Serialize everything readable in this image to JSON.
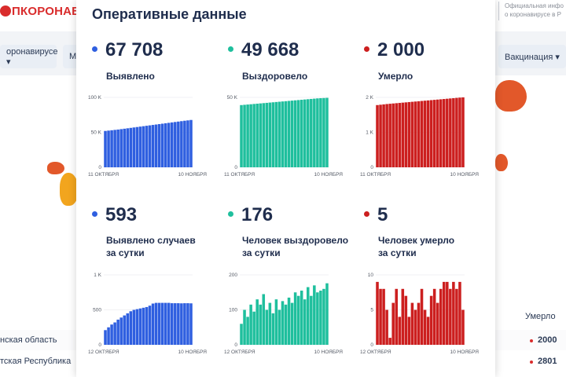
{
  "site": {
    "logo_text": "ПКОРОНАВИ",
    "info_line1": "Официальная инфо",
    "info_line2": "о коронавирусе в Р",
    "nav_left": "оронавирусе ▾",
    "nav_mid": "М",
    "nav_right": "Вакцинация ▾",
    "table_header": "Умерло",
    "rows": [
      {
        "region": "нская область",
        "value": "2000"
      },
      {
        "region": "тская Республика",
        "value": "2801"
      }
    ]
  },
  "card": {
    "title": "Оперативные данные",
    "stats": [
      {
        "value": "67 708",
        "label1": "Выявлено",
        "label2": "",
        "color": "#2f5fe0"
      },
      {
        "value": "49 668",
        "label1": "Выздоровело",
        "label2": "",
        "color": "#1fbf9d"
      },
      {
        "value": "2 000",
        "label1": "Умерло",
        "label2": "",
        "color": "#cc1f1f"
      },
      {
        "value": "593",
        "label1": "Выявлено случаев",
        "label2": "за сутки",
        "color": "#2f5fe0"
      },
      {
        "value": "176",
        "label1": "Человек выздоровело",
        "label2": "за сутки",
        "color": "#1fbf9d"
      },
      {
        "value": "5",
        "label1": "Человек умерло",
        "label2": "за сутки",
        "color": "#cc1f1f"
      }
    ]
  },
  "chart_data": [
    {
      "type": "bar",
      "color": "#2f5fe0",
      "ylim": [
        0,
        100000
      ],
      "yticks": [
        "100 K",
        "50 K",
        "0"
      ],
      "xstart": "11 ОКТЯБРЯ",
      "xend": "10 НОЯБРЯ",
      "values": [
        52000,
        52500,
        53000,
        53500,
        54000,
        54600,
        55200,
        55800,
        56400,
        57000,
        57600,
        58200,
        58800,
        59400,
        60000,
        60600,
        61200,
        61800,
        62400,
        63000,
        63600,
        64200,
        64800,
        65400,
        66000,
        66600,
        67100,
        67708
      ]
    },
    {
      "type": "bar",
      "color": "#1fbf9d",
      "ylim": [
        0,
        50000
      ],
      "yticks": [
        "50 K",
        "0"
      ],
      "xstart": "11 ОКТЯБРЯ",
      "xend": "10 НОЯБРЯ",
      "values": [
        44500,
        44700,
        44900,
        45100,
        45300,
        45500,
        45700,
        45900,
        46100,
        46300,
        46500,
        46700,
        46900,
        47100,
        47300,
        47500,
        47700,
        47900,
        48100,
        48300,
        48500,
        48700,
        48900,
        49100,
        49300,
        49450,
        49550,
        49668
      ]
    },
    {
      "type": "bar",
      "color": "#cc1f1f",
      "ylim": [
        0,
        2000
      ],
      "yticks": [
        "2 K",
        "1 K",
        "0"
      ],
      "xstart": "11 ОКТЯБРЯ",
      "xend": "10 НОЯБРЯ",
      "values": [
        1780,
        1790,
        1800,
        1810,
        1818,
        1826,
        1834,
        1842,
        1850,
        1858,
        1866,
        1874,
        1882,
        1890,
        1898,
        1906,
        1914,
        1922,
        1930,
        1938,
        1946,
        1954,
        1962,
        1970,
        1978,
        1986,
        1994,
        2000
      ]
    },
    {
      "type": "bar",
      "color": "#2f5fe0",
      "ylim": [
        0,
        1000
      ],
      "yticks": [
        "1 K",
        "500",
        "0"
      ],
      "xstart": "12 ОКТЯБРЯ",
      "xend": "10 НОЯБРЯ",
      "values": [
        210,
        250,
        290,
        320,
        360,
        390,
        420,
        450,
        480,
        500,
        510,
        520,
        530,
        540,
        560,
        590,
        600,
        600,
        600,
        600,
        600,
        595,
        595,
        595,
        593,
        595,
        595,
        593
      ]
    },
    {
      "type": "bar",
      "color": "#1fbf9d",
      "ylim": [
        0,
        200
      ],
      "yticks": [
        "200",
        "100",
        "0"
      ],
      "xstart": "12 ОКТЯБРЯ",
      "xend": "10 НОЯБРЯ",
      "values": [
        60,
        100,
        80,
        115,
        95,
        130,
        115,
        145,
        100,
        120,
        90,
        130,
        100,
        125,
        115,
        135,
        120,
        150,
        140,
        155,
        130,
        165,
        140,
        170,
        150,
        155,
        160,
        176
      ]
    },
    {
      "type": "bar",
      "color": "#cc1f1f",
      "ylim": [
        0,
        10
      ],
      "yticks": [
        "10",
        "5",
        "0"
      ],
      "xstart": "12 ОКТЯБРЯ",
      "xend": "10 НОЯБРЯ",
      "values": [
        9,
        8,
        8,
        5,
        1,
        6,
        8,
        4,
        8,
        7,
        4,
        6,
        5,
        6,
        8,
        5,
        4,
        7,
        8,
        6,
        8,
        9,
        9,
        8,
        9,
        8,
        9,
        5
      ]
    }
  ]
}
